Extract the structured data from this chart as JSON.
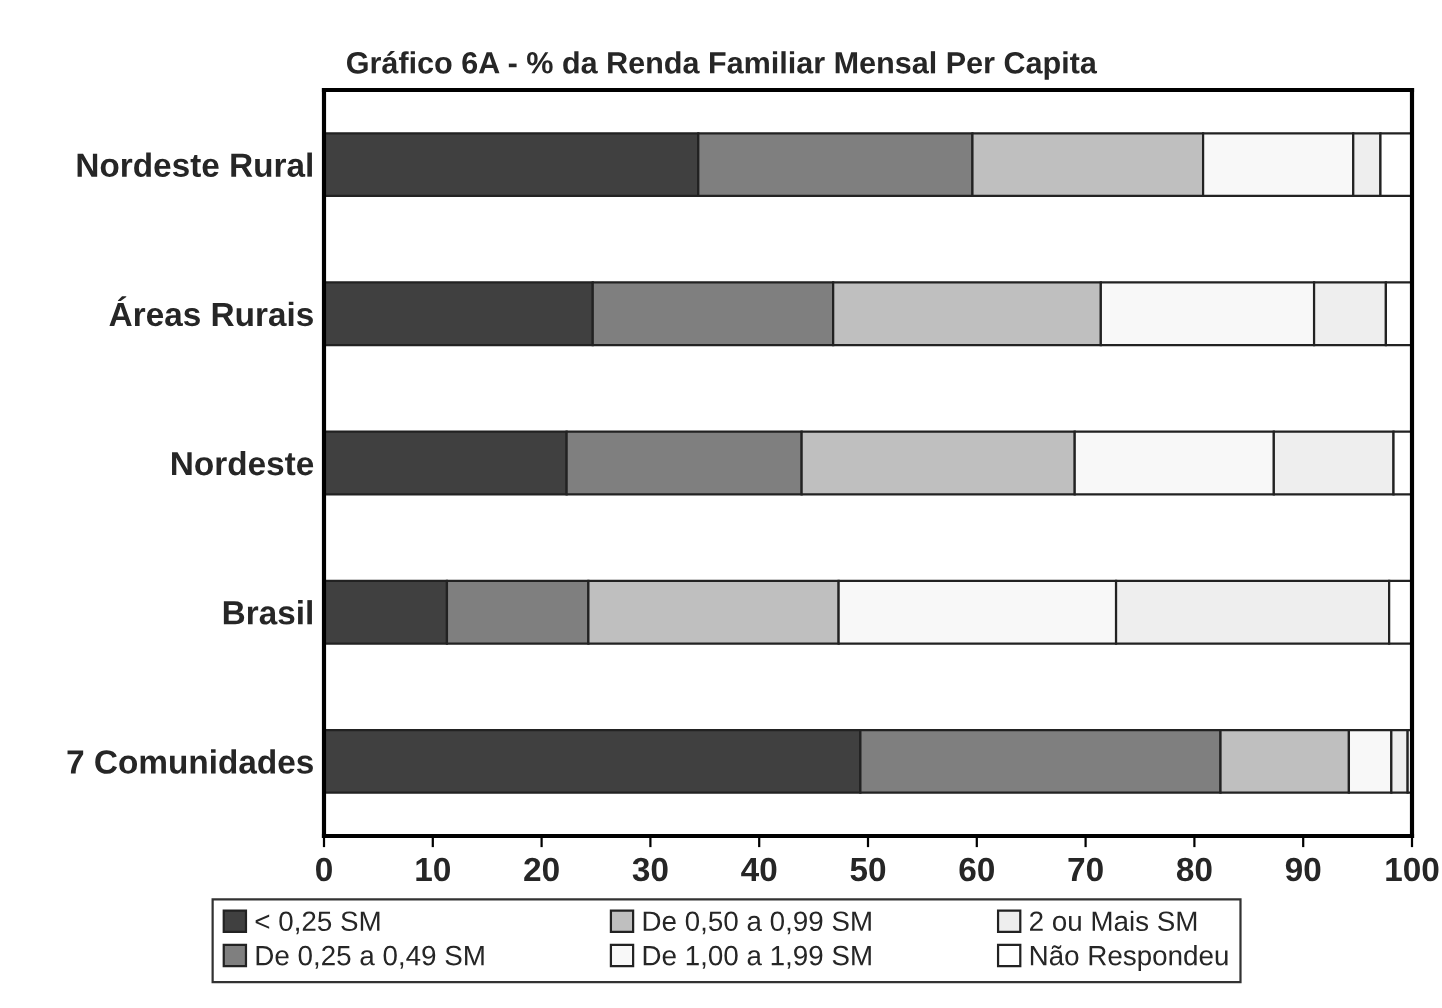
{
  "chart_data": {
    "type": "bar",
    "orientation": "horizontal",
    "stacked": true,
    "title": "Gráfico 6A - % da Renda Familiar Mensal Per Capita",
    "categories": [
      "Nordeste Rural",
      "Áreas Rurais",
      "Nordeste",
      "Brasil",
      "7 Comunidades"
    ],
    "series": [
      {
        "name": "< 0,25 SM",
        "color": "#404040",
        "values": [
          34.4,
          24.7,
          22.3,
          11.3,
          49.3
        ]
      },
      {
        "name": "De 0,25 a 0,49 SM",
        "color": "#7f7f7f",
        "values": [
          25.2,
          22.1,
          21.6,
          13.0,
          33.1
        ]
      },
      {
        "name": "De 0,50 a 0,99 SM",
        "color": "#bfbfbf",
        "values": [
          21.2,
          24.6,
          25.1,
          23.0,
          11.8
        ]
      },
      {
        "name": "De 1,00 a 1,99 SM",
        "color": "#f8f8f8",
        "values": [
          13.8,
          19.6,
          18.3,
          25.5,
          3.9
        ]
      },
      {
        "name": "2 ou Mais SM",
        "color": "#eeeeee",
        "values": [
          2.5,
          6.6,
          11.0,
          25.1,
          1.5
        ]
      },
      {
        "name": "Não Respondeu",
        "color": "#ffffff",
        "values": [
          2.9,
          2.4,
          1.7,
          2.1,
          0.4
        ]
      }
    ],
    "xlim": [
      0,
      100
    ],
    "xticks": [
      0,
      10,
      20,
      30,
      40,
      50,
      60,
      70,
      80,
      90,
      100
    ],
    "grid": false,
    "legend": "bottom"
  }
}
